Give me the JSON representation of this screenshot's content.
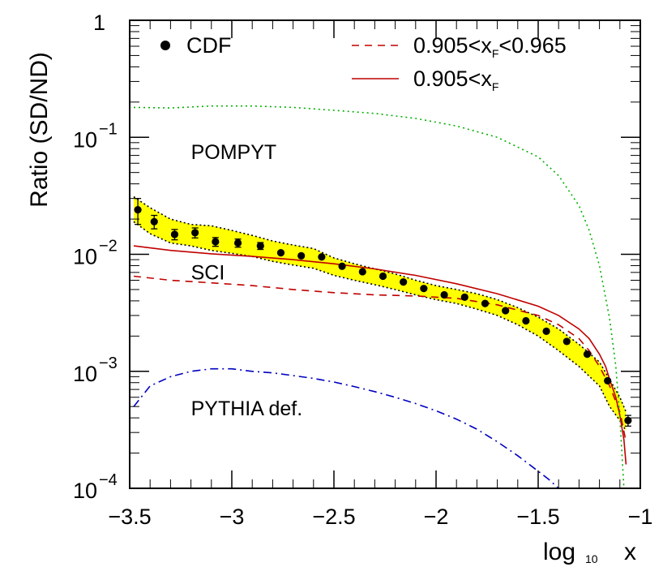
{
  "chart_data": {
    "type": "line",
    "title": "",
    "xlabel": "log 10 x",
    "xlabel_parts": {
      "main": "log",
      "sub": "10",
      "var": "x"
    },
    "ylabel": "Ratio (SD/ND)",
    "xlim": [
      -3.5,
      -1.0
    ],
    "ylim": [
      0.0001,
      1
    ],
    "yscale": "log",
    "grid": false,
    "legend_placement": "top",
    "x_ticks": [
      {
        "value": -3.5,
        "label": "-3.5"
      },
      {
        "value": -3.0,
        "label": "-3"
      },
      {
        "value": -2.5,
        "label": "-2.5"
      },
      {
        "value": -2.0,
        "label": "-2"
      },
      {
        "value": -1.5,
        "label": "-1.5"
      },
      {
        "value": -1.0,
        "label": "-1"
      }
    ],
    "y_ticks": [
      {
        "value": 1,
        "label": "1",
        "exp": ""
      },
      {
        "value": 0.1,
        "label": "10",
        "exp": "-1"
      },
      {
        "value": 0.01,
        "label": "10",
        "exp": "-2"
      },
      {
        "value": 0.001,
        "label": "10",
        "exp": "-3"
      },
      {
        "value": 0.0001,
        "label": "10",
        "exp": "-4"
      }
    ],
    "legend": [
      {
        "key": "cdf",
        "text": "CDF",
        "sub": "",
        "tail": ""
      },
      {
        "key": "dashed",
        "text": "0.905<x",
        "sub": "F",
        "tail": "<0.965"
      },
      {
        "key": "solid",
        "text": "0.905<x",
        "sub": "F",
        "tail": ""
      }
    ],
    "annotations": [
      {
        "text": "POMPYT",
        "x": -3.2,
        "y": 0.065
      },
      {
        "text": "SCI",
        "x": -3.2,
        "y": 0.0061
      },
      {
        "text": "PYTHIA def.",
        "x": -3.2,
        "y": 0.00042
      }
    ],
    "series": [
      {
        "style": "points",
        "color": "#000000",
        "points": [
          {
            "x": -3.46,
            "y": 0.024,
            "lo": 0.018,
            "hi": 0.03
          },
          {
            "x": -3.38,
            "y": 0.019,
            "lo": 0.0165,
            "hi": 0.0215
          },
          {
            "x": -3.28,
            "y": 0.0148,
            "lo": 0.0133,
            "hi": 0.0163
          },
          {
            "x": -3.18,
            "y": 0.0153,
            "lo": 0.0138,
            "hi": 0.0168
          },
          {
            "x": -3.08,
            "y": 0.0128,
            "lo": 0.0117,
            "hi": 0.0139
          },
          {
            "x": -2.97,
            "y": 0.0125,
            "lo": 0.0115,
            "hi": 0.0135
          },
          {
            "x": -2.86,
            "y": 0.0118,
            "lo": 0.011,
            "hi": 0.0126
          },
          {
            "x": -2.76,
            "y": 0.0103
          },
          {
            "x": -2.66,
            "y": 0.0097
          },
          {
            "x": -2.56,
            "y": 0.0095
          },
          {
            "x": -2.46,
            "y": 0.0079
          },
          {
            "x": -2.36,
            "y": 0.0071
          },
          {
            "x": -2.26,
            "y": 0.0065
          },
          {
            "x": -2.16,
            "y": 0.0058
          },
          {
            "x": -2.06,
            "y": 0.0051
          },
          {
            "x": -1.96,
            "y": 0.0045
          },
          {
            "x": -1.86,
            "y": 0.0043
          },
          {
            "x": -1.76,
            "y": 0.0038
          },
          {
            "x": -1.66,
            "y": 0.0033
          },
          {
            "x": -1.56,
            "y": 0.0027
          },
          {
            "x": -1.46,
            "y": 0.0022
          },
          {
            "x": -1.36,
            "y": 0.0018
          },
          {
            "x": -1.26,
            "y": 0.0014
          },
          {
            "x": -1.16,
            "y": 0.00083
          },
          {
            "x": -1.06,
            "y": 0.00038,
            "lo": 0.00034,
            "hi": 0.00042
          }
        ]
      },
      {
        "style": "band",
        "fill": "#ffff00",
        "edge": "#000000",
        "x": [
          -3.48,
          -3.4,
          -3.3,
          -3.2,
          -3.1,
          -3.0,
          -2.9,
          -2.8,
          -2.7,
          -2.6,
          -2.5,
          -2.4,
          -2.3,
          -2.2,
          -2.1,
          -2.0,
          -1.9,
          -1.8,
          -1.7,
          -1.6,
          -1.5,
          -1.4,
          -1.3,
          -1.2,
          -1.15,
          -1.1,
          -1.07
        ],
        "upper": [
          0.031,
          0.025,
          0.02,
          0.018,
          0.0175,
          0.016,
          0.0145,
          0.013,
          0.012,
          0.0112,
          0.0093,
          0.0083,
          0.0075,
          0.0068,
          0.006,
          0.0054,
          0.005,
          0.0046,
          0.0041,
          0.0035,
          0.0029,
          0.0023,
          0.0017,
          0.0012,
          0.00085,
          0.0006,
          0.00045
        ],
        "lower": [
          0.019,
          0.015,
          0.0125,
          0.0118,
          0.0108,
          0.0102,
          0.0096,
          0.0087,
          0.0081,
          0.0076,
          0.0066,
          0.006,
          0.0055,
          0.005,
          0.0045,
          0.0041,
          0.0038,
          0.0034,
          0.003,
          0.0025,
          0.002,
          0.0015,
          0.0011,
          0.00075,
          0.0005,
          0.00038,
          0.00031
        ]
      },
      {
        "style": "dashed",
        "color": "#c00000",
        "x": [
          -3.48,
          -3.3,
          -3.1,
          -2.9,
          -2.7,
          -2.5,
          -2.3,
          -2.1,
          -1.9,
          -1.7,
          -1.5,
          -1.4,
          -1.3,
          -1.25,
          -1.2,
          -1.15,
          -1.1,
          -1.07
        ],
        "y": [
          0.0065,
          0.006,
          0.0057,
          0.0054,
          0.005,
          0.0047,
          0.0045,
          0.0044,
          0.0042,
          0.0037,
          0.003,
          0.0025,
          0.0019,
          0.0015,
          0.0011,
          0.00075,
          0.00045,
          0.00025
        ]
      },
      {
        "style": "solid",
        "color": "#c00000",
        "x": [
          -3.48,
          -3.3,
          -3.1,
          -2.9,
          -2.7,
          -2.5,
          -2.3,
          -2.1,
          -1.9,
          -1.7,
          -1.5,
          -1.4,
          -1.3,
          -1.25,
          -1.2,
          -1.17,
          -1.15,
          -1.12,
          -1.1,
          -1.08,
          -1.07
        ],
        "y": [
          0.0118,
          0.0108,
          0.0101,
          0.0096,
          0.009,
          0.0083,
          0.0075,
          0.0066,
          0.0056,
          0.0046,
          0.0036,
          0.003,
          0.0023,
          0.0019,
          0.0014,
          0.0011,
          0.00085,
          0.0006,
          0.00042,
          0.00026,
          0.00016
        ]
      },
      {
        "style": "dotted",
        "color": "#00b000",
        "x": [
          -3.48,
          -3.3,
          -3.1,
          -2.9,
          -2.7,
          -2.5,
          -2.3,
          -2.1,
          -1.9,
          -1.7,
          -1.5,
          -1.4,
          -1.3,
          -1.25,
          -1.2,
          -1.15,
          -1.12,
          -1.1,
          -1.08
        ],
        "y": [
          0.18,
          0.178,
          0.185,
          0.185,
          0.18,
          0.17,
          0.16,
          0.145,
          0.125,
          0.1,
          0.068,
          0.047,
          0.026,
          0.016,
          0.008,
          0.0028,
          0.0011,
          0.0004,
          0.0001
        ]
      },
      {
        "style": "dashdot",
        "color": "#0000c0",
        "x": [
          -3.48,
          -3.4,
          -3.3,
          -3.2,
          -3.1,
          -3.0,
          -2.9,
          -2.8,
          -2.7,
          -2.6,
          -2.5,
          -2.4,
          -2.3,
          -2.2,
          -2.1,
          -2.0,
          -1.9,
          -1.8,
          -1.7,
          -1.6,
          -1.5,
          -1.45,
          -1.4,
          -1.35,
          -1.3
        ],
        "y": [
          0.0005,
          0.00075,
          0.0009,
          0.001,
          0.00105,
          0.00105,
          0.001,
          0.00097,
          0.00092,
          0.00087,
          0.00081,
          0.00074,
          0.00067,
          0.0006,
          0.00053,
          0.00046,
          0.00039,
          0.00032,
          0.00025,
          0.00019,
          0.00014,
          0.00012,
          0.0001,
          8e-05,
          6.5e-05
        ]
      }
    ]
  }
}
